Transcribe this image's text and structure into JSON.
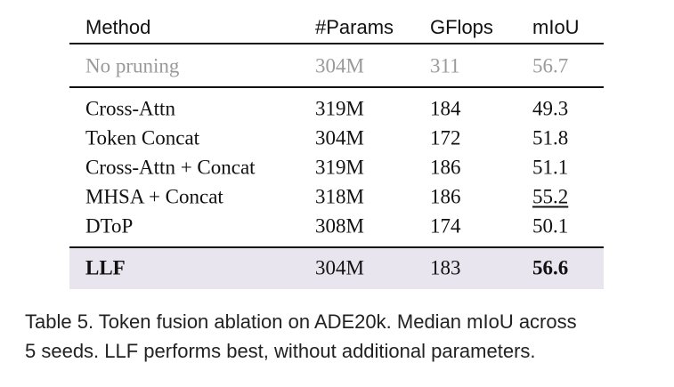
{
  "table": {
    "header": [
      "Method",
      "#Params",
      "GFlops",
      "mIoU"
    ],
    "baseline": [
      "No pruning",
      "304M",
      311,
      56.7
    ],
    "rows": [
      [
        "Cross-Attn",
        "319M",
        184,
        49.3
      ],
      [
        "Token Concat",
        "304M",
        172,
        51.8
      ],
      [
        "Cross-Attn + Concat",
        "319M",
        186,
        51.1
      ],
      [
        "MHSA + Concat",
        "318M",
        186,
        55.2
      ],
      [
        "DToP",
        "308M",
        174,
        50.1
      ]
    ],
    "highlight": [
      "LLF",
      "304M",
      183,
      56.6
    ]
  },
  "caption": [
    "Table 5. Token fusion ablation on ADE20k. Median mIoU across",
    "5 seeds. LLF performs best, without additional parameters."
  ]
}
